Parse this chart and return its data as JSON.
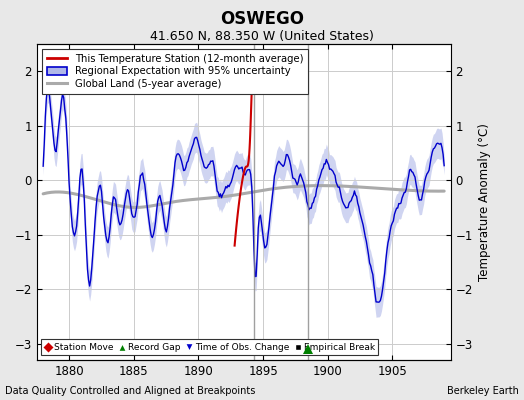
{
  "title": "OSWEGO",
  "subtitle": "41.650 N, 88.350 W (United States)",
  "ylabel": "Temperature Anomaly (°C)",
  "xlabel_left": "Data Quality Controlled and Aligned at Breakpoints",
  "xlabel_right": "Berkeley Earth",
  "xlim": [
    1877.5,
    1909.5
  ],
  "ylim": [
    -3.3,
    2.5
  ],
  "yticks": [
    -3,
    -2,
    -1,
    0,
    1,
    2
  ],
  "xticks": [
    1880,
    1885,
    1890,
    1895,
    1900,
    1905
  ],
  "bg_color": "#e8e8e8",
  "plot_bg_color": "#ffffff",
  "grid_color": "#cccccc",
  "blue_line_color": "#0000cc",
  "red_line_color": "#cc0000",
  "gray_line_color": "#aaaaaa",
  "uncertainty_color": "#b0b8e8",
  "vertical_line_color": "#888888",
  "vertical_line_x1": 1894.3,
  "vertical_line_x2": 1898.5,
  "green_marker_x": 1898.5,
  "green_marker_y": -3.1
}
